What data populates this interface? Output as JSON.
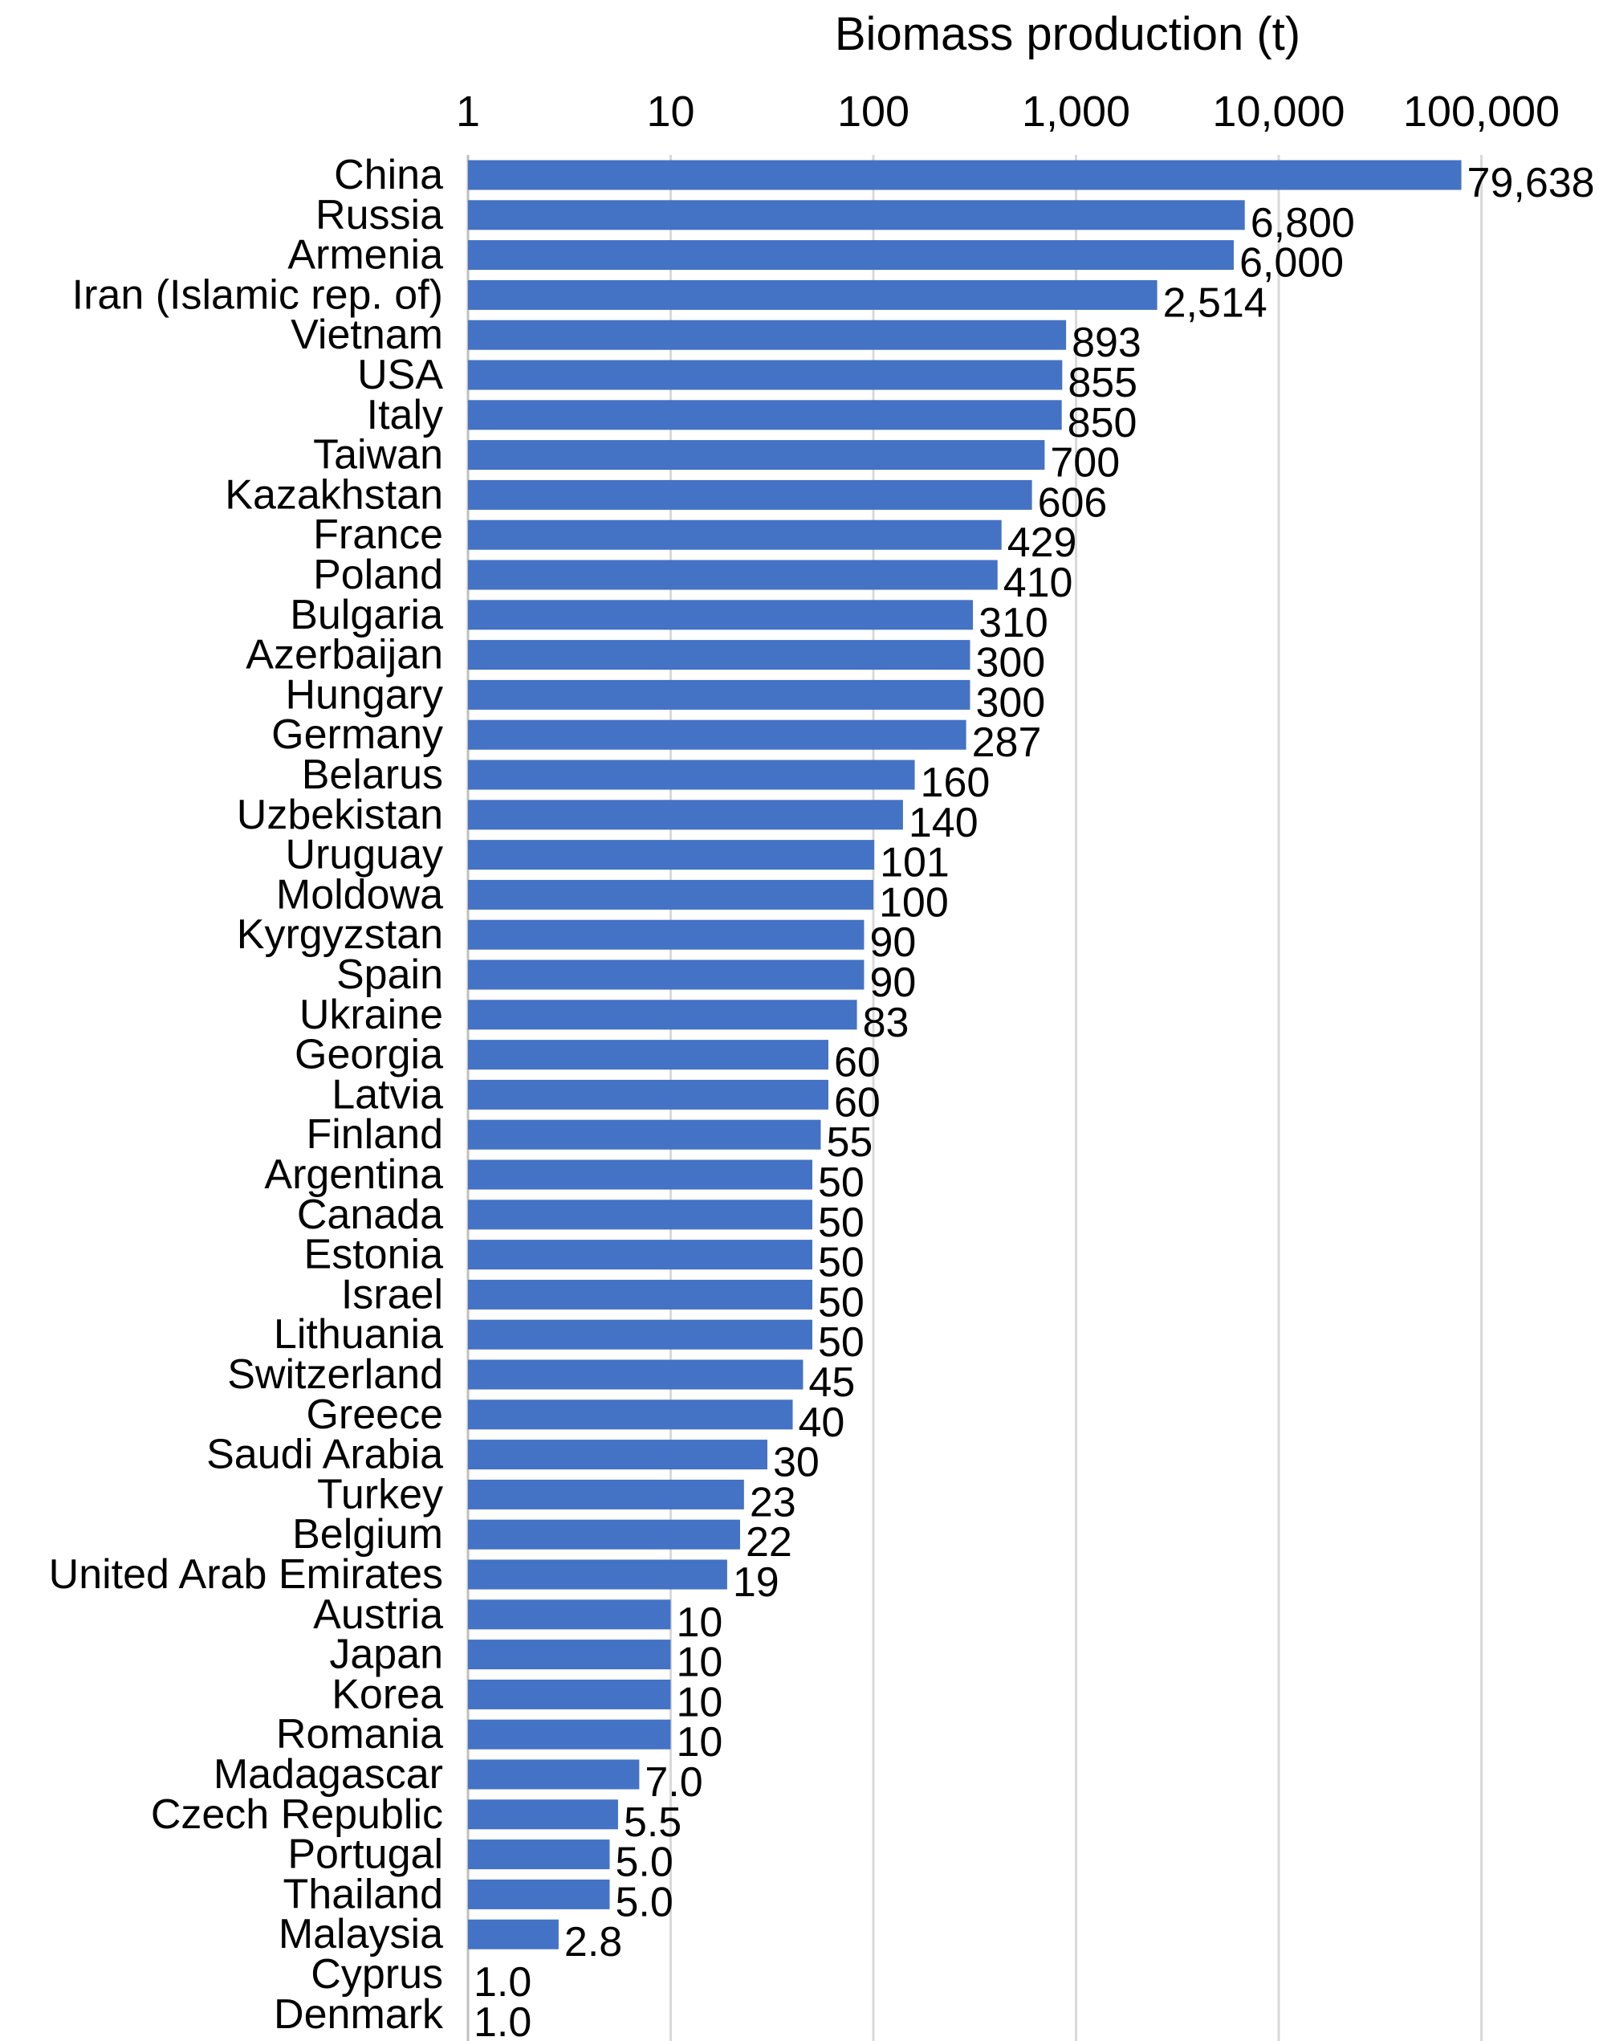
{
  "chart_data": {
    "type": "bar",
    "orientation": "horizontal",
    "title": "",
    "xlabel": "Biomass production (t)",
    "ylabel": "",
    "x_scale": "log",
    "xlim": [
      1,
      100000
    ],
    "x_ticks": [
      "1",
      "10",
      "100",
      "1,000",
      "10,000",
      "100,000"
    ],
    "x_axis_position": "top",
    "grid": true,
    "legend": "none",
    "bar_color": "#4472C4",
    "categories": [
      "China",
      "Russia",
      "Armenia",
      "Iran (Islamic rep. of)",
      "Vietnam",
      "USA",
      "Italy",
      "Taiwan",
      "Kazakhstan",
      "France",
      "Poland",
      "Bulgaria",
      "Azerbaijan",
      "Hungary",
      "Germany",
      "Belarus",
      "Uzbekistan",
      "Uruguay",
      "Moldowa",
      "Kyrgyzstan",
      "Spain",
      "Ukraine",
      "Georgia",
      "Latvia",
      "Finland",
      "Argentina",
      "Canada",
      "Estonia",
      "Israel",
      "Lithuania",
      "Switzerland",
      "Greece",
      "Saudi Arabia",
      "Turkey",
      "Belgium",
      "United Arab Emirates",
      "Austria",
      "Japan",
      "Korea",
      "Romania",
      "Madagascar",
      "Czech Republic",
      "Portugal",
      "Thailand",
      "Malaysia",
      "Cyprus",
      "Denmark"
    ],
    "values": [
      79638,
      6800,
      6000,
      2514,
      893,
      855,
      850,
      700,
      606,
      429,
      410,
      310,
      300,
      300,
      287,
      160,
      140,
      101,
      100,
      90,
      90,
      83,
      60,
      60,
      55,
      50,
      50,
      50,
      50,
      50,
      45,
      40,
      30,
      23,
      22,
      19,
      10,
      10,
      10,
      10,
      7.0,
      5.5,
      5.0,
      5.0,
      2.8,
      1.0,
      1.0
    ],
    "data_labels": [
      "79,638",
      "6,800",
      "6,000",
      "2,514",
      "893",
      "855",
      "850",
      "700",
      "606",
      "429",
      "410",
      "310",
      "300",
      "300",
      "287",
      "160",
      "140",
      "101",
      "100",
      "90",
      "90",
      "83",
      "60",
      "60",
      "55",
      "50",
      "50",
      "50",
      "50",
      "50",
      "45",
      "40",
      "30",
      "23",
      "22",
      "19",
      "10",
      "10",
      "10",
      "10",
      "7.0",
      "5.5",
      "5.0",
      "5.0",
      "2.8",
      "1.0",
      "1.0"
    ]
  }
}
